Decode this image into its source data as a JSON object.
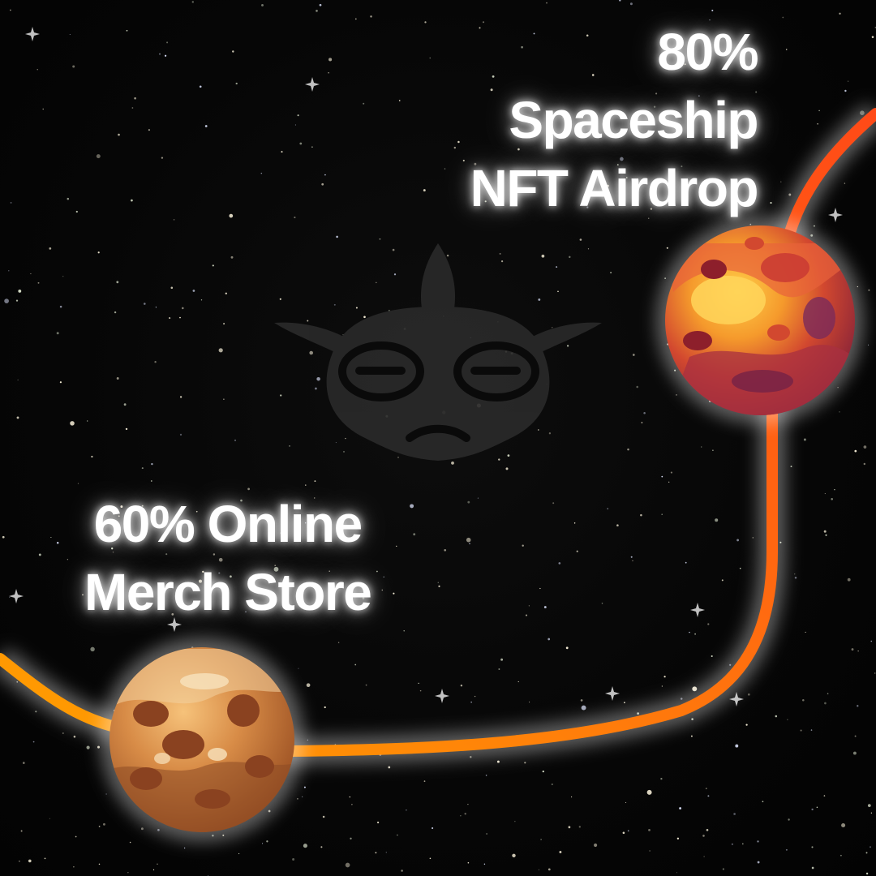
{
  "milestones": [
    {
      "id": "spaceship-airdrop",
      "lines": [
        "80%",
        "Spaceship",
        "NFT Airdrop"
      ],
      "planet_color": "#e5552f"
    },
    {
      "id": "merch-store",
      "lines": [
        "60% Online",
        "Merch Store"
      ],
      "planet_color": "#d98a47"
    }
  ],
  "colors": {
    "background": "#050505",
    "path_start": "#ffa200",
    "path_end": "#ff4a17",
    "text": "#ffffff",
    "watermark": "#2a2a2a"
  },
  "icons": {
    "watermark": "frog-face-logo-icon",
    "top_planet": "red-planet-icon",
    "bottom_planet": "tan-planet-icon"
  }
}
